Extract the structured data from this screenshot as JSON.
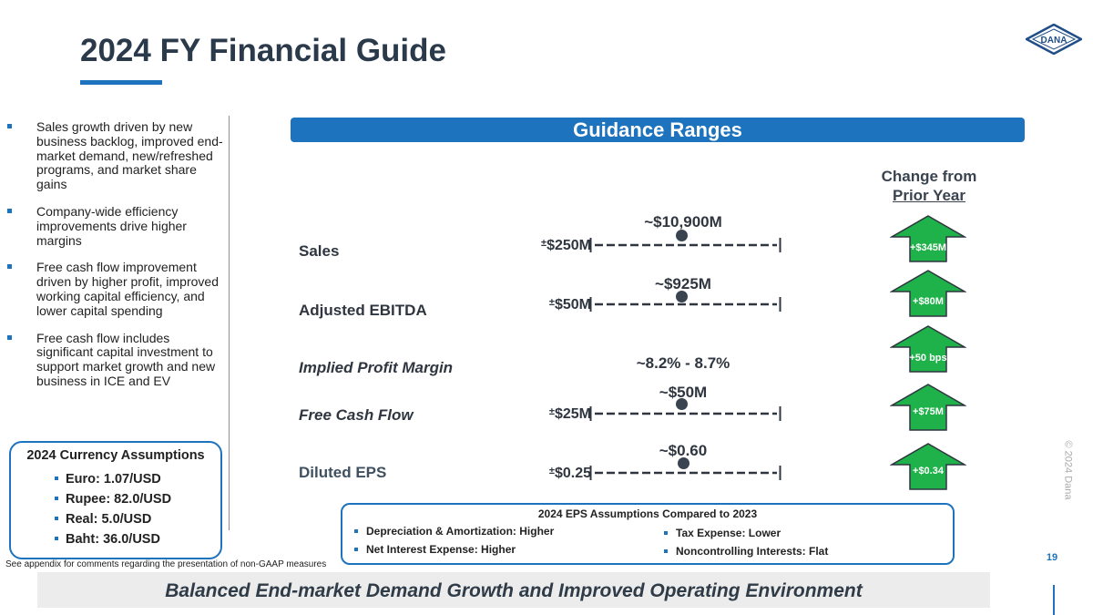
{
  "title": "2024 FY Financial Guide",
  "logo": {
    "text": "DANA"
  },
  "colors": {
    "accent": "#1e73be",
    "arrow_green": "#1fb24a",
    "dot": "#3a4450"
  },
  "bullets": [
    "Sales growth driven by new business backlog, improved end-market demand, new/refreshed programs, and market share gains",
    "Company-wide efficiency improvements drive higher margins",
    "Free cash flow improvement driven by higher profit, improved working capital efficiency, and lower capital spending",
    "Free cash flow includes significant capital investment to support market growth and new business in ICE and EV"
  ],
  "currency": {
    "title": "2024 Currency Assumptions",
    "items": [
      "Euro: 1.07/USD",
      "Rupee: 82.0/USD",
      "Real: 5.0/USD",
      "Baht: 36.0/USD"
    ]
  },
  "footnote": "See appendix for comments regarding the presentation of non-GAAP measures",
  "guidance": {
    "header": "Guidance Ranges",
    "change_header_line1": "Change from",
    "change_header_line2": "Prior Year",
    "rows": [
      {
        "label": "Sales",
        "center": "~$10,900M",
        "pm": "±",
        "range": "$250M",
        "change": "+$345M"
      },
      {
        "label": "Adjusted EBITDA",
        "center": "~$925M",
        "pm": "±",
        "range": "$50M",
        "change": "+$80M"
      },
      {
        "label": "Implied Profit Margin",
        "center": "~8.2% - 8.7%",
        "change": "+50 bps"
      },
      {
        "label": "Free Cash Flow",
        "center": "~$50M",
        "pm": "±",
        "range": "$25M",
        "change": "+$75M"
      },
      {
        "label": "Diluted EPS",
        "center": "~$0.60",
        "pm": "±",
        "range": "$0.25",
        "change": "+$0.34"
      }
    ]
  },
  "eps": {
    "title": "2024 EPS Assumptions Compared to 2023",
    "left": [
      "Depreciation & Amortization: Higher",
      "Net Interest Expense: Higher"
    ],
    "right": [
      "Tax Expense: Lower",
      "Noncontrolling Interests: Flat"
    ]
  },
  "copyright": "© 2024 Dana",
  "page_number": "19",
  "banner": "Balanced End-market Demand Growth and Improved Operating Environment"
}
